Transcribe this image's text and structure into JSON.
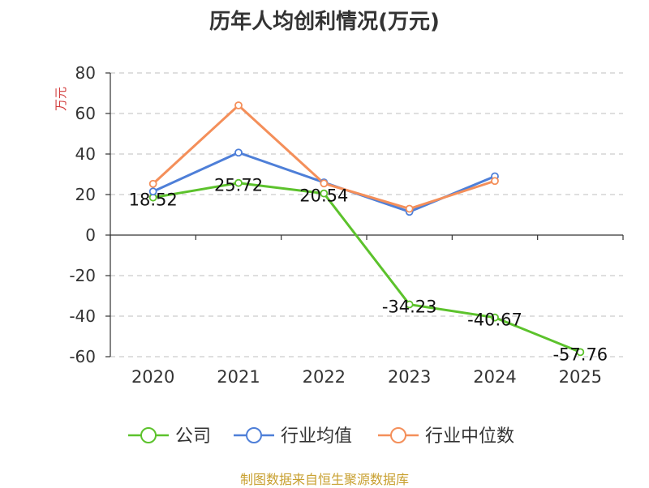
{
  "chart_data": {
    "type": "line",
    "title": "历年人均创利情况(万元)",
    "ylabel": "万元",
    "xlabel": "",
    "categories": [
      "2020",
      "2021",
      "2022",
      "2023",
      "2024",
      "2025"
    ],
    "ylim": [
      -60,
      80
    ],
    "yticks": [
      80,
      60,
      40,
      20,
      0,
      -20,
      -40,
      -60
    ],
    "grid": true,
    "legend_position": "bottom",
    "series": [
      {
        "name": "公司",
        "color": "#5cc22c",
        "values": [
          18.52,
          25.72,
          20.54,
          -34.23,
          -40.67,
          -57.76
        ],
        "labels": [
          "18.52",
          "25.72",
          "20.54",
          "-34.23",
          "-40.67",
          "-57.76"
        ]
      },
      {
        "name": "行业均值",
        "color": "#4e7fd8",
        "values": [
          21.5,
          40.7,
          26.0,
          11.5,
          29.0,
          null
        ]
      },
      {
        "name": "行业中位数",
        "color": "#f48f5a",
        "values": [
          25.3,
          64.0,
          25.5,
          13.0,
          26.7,
          null
        ]
      }
    ]
  },
  "footer": {
    "source": "制图数据来自恒生聚源数据库"
  }
}
